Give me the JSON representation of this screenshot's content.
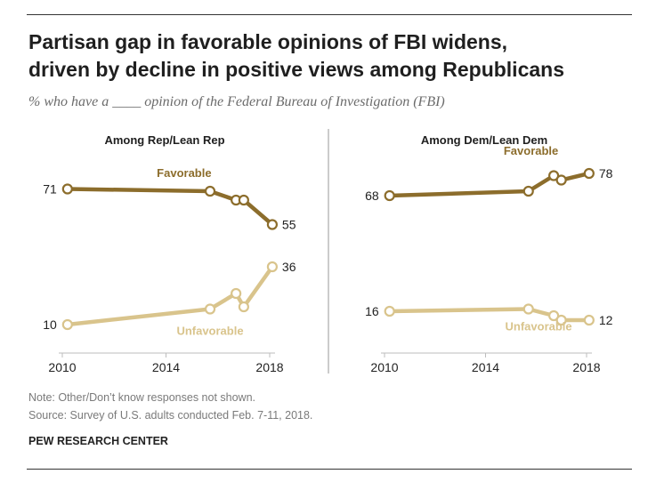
{
  "title_line1": "Partisan gap in favorable opinions of FBI widens,",
  "title_line2": "driven by decline in positive views among Republicans",
  "subtitle": "% who have a ____ opinion of the Federal Bureau of Investigation (FBI)",
  "notes": {
    "note": "Note: Other/Don’t know responses not shown.",
    "source": "Source: Survey of U.S. adults conducted Feb. 7-11, 2018."
  },
  "org": "PEW RESEARCH CENTER",
  "colors": {
    "favorable": "#8c6d2c",
    "unfavorable": "#d9c48c",
    "rule": "#333333",
    "divider": "#9a9a9a"
  },
  "chart_data": [
    {
      "type": "line",
      "title": "Among Rep/Lean Rep",
      "x_ticks": [
        2010,
        2014,
        2018
      ],
      "xlim": [
        2010,
        2018
      ],
      "ylim": [
        0,
        100
      ],
      "series": [
        {
          "name": "Favorable",
          "label_year": 2014.7,
          "label_value": 78,
          "x": [
            2010.2,
            2015.7,
            2016.7,
            2017.0,
            2018.1
          ],
          "values": [
            71,
            70,
            66,
            66,
            55
          ],
          "start_label": "71",
          "end_label": "55"
        },
        {
          "name": "Unfavorable",
          "label_year": 2015.7,
          "label_value": 7,
          "x": [
            2010.2,
            2015.7,
            2016.7,
            2017.0,
            2018.1
          ],
          "values": [
            10,
            17,
            24,
            18,
            36
          ],
          "start_label": "10",
          "end_label": "36"
        }
      ]
    },
    {
      "type": "line",
      "title": "Among Dem/Lean Dem",
      "x_ticks": [
        2010,
        2014,
        2018
      ],
      "xlim": [
        2010,
        2018
      ],
      "ylim": [
        0,
        100
      ],
      "series": [
        {
          "name": "Favorable",
          "label_year": 2015.8,
          "label_value": 88,
          "x": [
            2010.2,
            2015.7,
            2016.7,
            2017.0,
            2018.1
          ],
          "values": [
            68,
            70,
            77,
            75,
            78
          ],
          "start_label": "68",
          "end_label": "78"
        },
        {
          "name": "Unfavorable",
          "label_year": 2016.1,
          "label_value": 9,
          "x": [
            2010.2,
            2015.7,
            2016.7,
            2017.0,
            2018.1
          ],
          "values": [
            16,
            17,
            14,
            12,
            12
          ],
          "start_label": "16",
          "end_label": "12"
        }
      ]
    }
  ]
}
